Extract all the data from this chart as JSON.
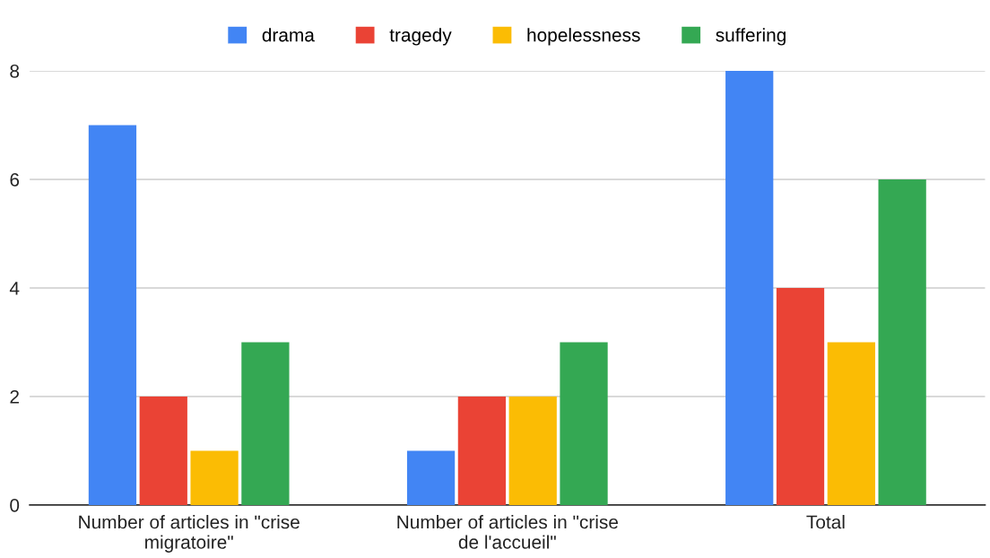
{
  "chart_data": {
    "type": "bar",
    "categories": [
      "Number of articles in \"crise\nmigratoire\"",
      "Number of articles in \"crise\nde l'accueil\"",
      "Total"
    ],
    "series": [
      {
        "name": "drama",
        "color": "#4285f4",
        "values": [
          7,
          1,
          8
        ]
      },
      {
        "name": "tragedy",
        "color": "#ea4335",
        "values": [
          2,
          2,
          4
        ]
      },
      {
        "name": "hopelessness",
        "color": "#fbbc04",
        "values": [
          1,
          2,
          3
        ]
      },
      {
        "name": "suffering",
        "color": "#34a853",
        "values": [
          3,
          3,
          6
        ]
      }
    ],
    "ylim": [
      0,
      8
    ],
    "yticks": [
      0,
      2,
      4,
      6,
      8
    ],
    "grid": "y",
    "legend": "top"
  }
}
